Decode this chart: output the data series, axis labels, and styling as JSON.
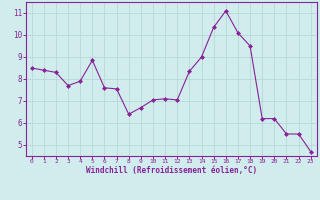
{
  "x": [
    0,
    1,
    2,
    3,
    4,
    5,
    6,
    7,
    8,
    9,
    10,
    11,
    12,
    13,
    14,
    15,
    16,
    17,
    18,
    19,
    20,
    21,
    22,
    23
  ],
  "y": [
    8.5,
    8.4,
    8.3,
    7.7,
    7.9,
    8.85,
    7.6,
    7.55,
    6.4,
    6.7,
    7.05,
    7.1,
    7.05,
    8.35,
    9.0,
    10.35,
    11.1,
    10.1,
    9.5,
    6.2,
    6.2,
    5.5,
    5.5,
    4.7
  ],
  "xlabel": "Windchill (Refroidissement éolien,°C)",
  "xlim": [
    -0.5,
    23.5
  ],
  "ylim": [
    4.5,
    11.5
  ],
  "yticks": [
    5,
    6,
    7,
    8,
    9,
    10,
    11
  ],
  "xticks": [
    0,
    1,
    2,
    3,
    4,
    5,
    6,
    7,
    8,
    9,
    10,
    11,
    12,
    13,
    14,
    15,
    16,
    17,
    18,
    19,
    20,
    21,
    22,
    23
  ],
  "line_color": "#882299",
  "marker": "D",
  "marker_size": 2.0,
  "background_color": "#d0ecec",
  "grid_color": "#b8d8d8",
  "axis_label_color": "#882299",
  "tick_label_color": "#882299",
  "spine_color": "#882299"
}
